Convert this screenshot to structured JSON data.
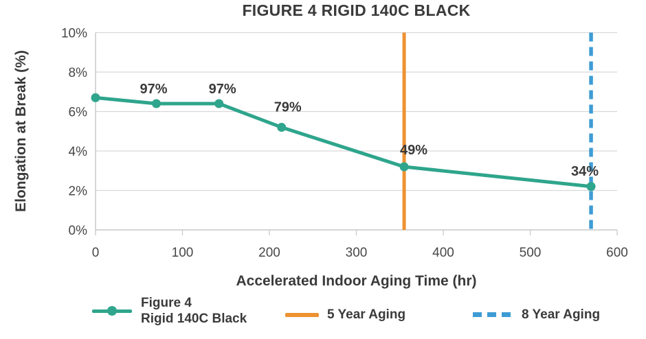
{
  "chart_data": {
    "type": "line",
    "title": "FIGURE 4 RIGID 140C BLACK",
    "xlabel": "Accelerated Indoor Aging Time (hr)",
    "ylabel": "Elongation at Break (%)",
    "xlim": [
      0,
      600
    ],
    "ylim": [
      0,
      10
    ],
    "x_ticks": [
      0,
      100,
      200,
      300,
      400,
      500,
      600
    ],
    "y_ticks": [
      0,
      2,
      4,
      6,
      8,
      10
    ],
    "y_tick_suffix": "%",
    "grid": "horizontal",
    "legend_position": "bottom",
    "series": [
      {
        "name": "Figure 4 Rigid 140C Black",
        "color": "#2EA58C",
        "marker": "circle",
        "x": [
          0,
          70,
          142,
          214,
          355,
          570
        ],
        "y": [
          6.7,
          6.4,
          6.4,
          5.2,
          3.2,
          2.2
        ],
        "point_labels": [
          "",
          "97%",
          "97%",
          "79%",
          "49%",
          "34%"
        ]
      }
    ],
    "vlines": [
      {
        "x": 355,
        "label": "5 Year Aging",
        "style": "solid",
        "color": "#ED9231"
      },
      {
        "x": 570,
        "label": "8 Year Aging",
        "style": "dashed",
        "color": "#3E9CD4"
      }
    ],
    "colors": {
      "title_text": "#3A3A3A",
      "tick_text": "#474747",
      "gridline": "#D8D8D8",
      "axis": "#C9C9C9"
    }
  },
  "legend": {
    "series_label": "Figure 4\nRigid 140C Black",
    "five_year_label": "5 Year Aging",
    "eight_year_label": "8 Year Aging"
  }
}
